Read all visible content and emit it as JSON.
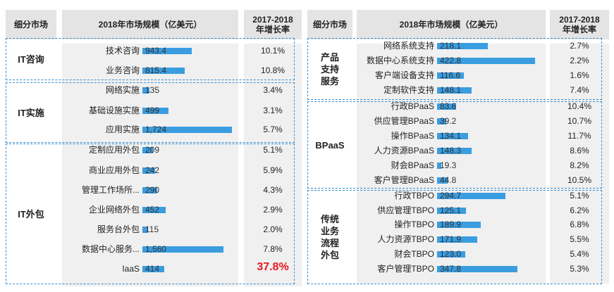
{
  "chart_data": [
    {
      "type": "bar",
      "orientation": "horizontal",
      "headers": {
        "segment": "细分市场",
        "size": "2018年市场规模（亿美元）",
        "growth": "2017-2018\n年增长率"
      },
      "xlim": [
        0,
        1900
      ],
      "groups": [
        {
          "name": "IT咨询",
          "rows": [
            {
              "label": "技术咨询",
              "value": 943.4,
              "value_text": "943.4",
              "growth": "10.1%"
            },
            {
              "label": "业务咨询",
              "value": 815.4,
              "value_text": "815.4",
              "growth": "10.8%"
            }
          ]
        },
        {
          "name": "IT实施",
          "rows": [
            {
              "label": "网络实施",
              "value": 135,
              "value_text": "135",
              "growth": "3.4%"
            },
            {
              "label": "基础设施实施",
              "value": 499,
              "value_text": "499",
              "growth": "3.1%"
            },
            {
              "label": "应用实施",
              "value": 1724,
              "value_text": "1,724",
              "growth": "5.7%"
            }
          ]
        },
        {
          "name": "IT外包",
          "rows": [
            {
              "label": "定制应用外包",
              "value": 209,
              "value_text": "209",
              "growth": "5.1%"
            },
            {
              "label": "商业应用外包",
              "value": 242,
              "value_text": "242",
              "growth": "5.9%"
            },
            {
              "label": "管理工作场所...",
              "value": 290,
              "value_text": "290",
              "growth": "4.3%"
            },
            {
              "label": "企业网络外包",
              "value": 452,
              "value_text": "452",
              "growth": "2.9%"
            },
            {
              "label": "服务台外包",
              "value": 115,
              "value_text": "115",
              "growth": "2.0%"
            },
            {
              "label": "数据中心服务...",
              "value": 1560,
              "value_text": "1,560",
              "growth": "7.8%"
            },
            {
              "label": "IaaS",
              "value": 414,
              "value_text": "414",
              "growth": "37.8%",
              "highlight": true
            }
          ]
        }
      ]
    },
    {
      "type": "bar",
      "orientation": "horizontal",
      "headers": {
        "segment": "细分市场",
        "size": "2018年市场规模（亿美元）",
        "growth": "2017-2018\n年增长率"
      },
      "xlim": [
        0,
        450
      ],
      "groups": [
        {
          "name": "产品\n支持\n服务",
          "rows": [
            {
              "label": "网络系统支持",
              "value": 218.1,
              "value_text": "218.1",
              "growth": "2.7%"
            },
            {
              "label": "数据中心系统支持",
              "value": 422.8,
              "value_text": "422.8",
              "growth": "2.2%"
            },
            {
              "label": "客户端设备支持",
              "value": 116.6,
              "value_text": "116.6",
              "growth": "1.6%"
            },
            {
              "label": "定制软件支持",
              "value": 148.1,
              "value_text": "148.1",
              "growth": "7.4%"
            }
          ]
        },
        {
          "name": "BPaaS",
          "rows": [
            {
              "label": "行政BPaaS",
              "value": 83.6,
              "value_text": "83.6",
              "growth": "10.4%"
            },
            {
              "label": "供应管理BPaaS",
              "value": 39.2,
              "value_text": "39.2",
              "growth": "10.7%"
            },
            {
              "label": "操作BPaaS",
              "value": 134.1,
              "value_text": "134.1",
              "growth": "11.7%"
            },
            {
              "label": "人力资源BPaaS",
              "value": 148.3,
              "value_text": "148.3",
              "growth": "8.6%"
            },
            {
              "label": "财会BPaaS",
              "value": 19.3,
              "value_text": "19.3",
              "growth": "8.2%"
            },
            {
              "label": "客户管理BPaaS",
              "value": 44.8,
              "value_text": "44.8",
              "growth": "10.5%"
            }
          ]
        },
        {
          "name": "传统\n业务\n流程\n外包",
          "rows": [
            {
              "label": "行政TBPO",
              "value": 294.7,
              "value_text": "294.7",
              "growth": "5.1%"
            },
            {
              "label": "供应管理TBPO",
              "value": 125.1,
              "value_text": "125.1",
              "growth": "6.2%"
            },
            {
              "label": "操作TBPO",
              "value": 189.9,
              "value_text": "189.9",
              "growth": "6.8%"
            },
            {
              "label": "人力资源TBPO",
              "value": 171.9,
              "value_text": "171.9",
              "growth": "5.5%"
            },
            {
              "label": "财会TBPO",
              "value": 123.0,
              "value_text": "123.0",
              "growth": "5.4%"
            },
            {
              "label": "客户管理TBPO",
              "value": 347.8,
              "value_text": "347.8",
              "growth": "5.3%"
            }
          ]
        }
      ]
    }
  ],
  "colors": {
    "bar": "#3a9de0",
    "highlight": "#e8191e",
    "header_band": "#e4e4e4",
    "column_band": "#f0f0f0",
    "dashed_border": "#3b8fd0"
  }
}
